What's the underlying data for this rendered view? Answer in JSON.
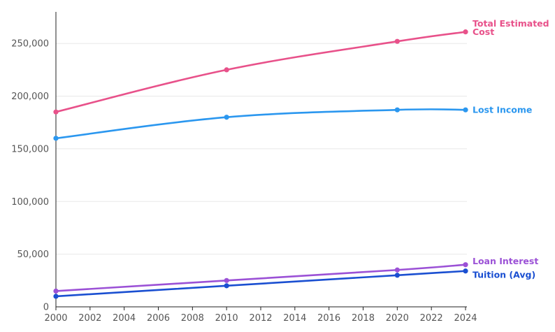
{
  "chart_data": {
    "type": "line",
    "x": [
      2000,
      2010,
      2020,
      2024
    ],
    "xlim": [
      2000,
      2024
    ],
    "ylim": [
      0,
      280000
    ],
    "xticks": [
      "2000",
      "2002",
      "2004",
      "2006",
      "2008",
      "2010",
      "2012",
      "2014",
      "2016",
      "2018",
      "2020",
      "2022",
      "2024"
    ],
    "yticks": [
      "0",
      "50,000",
      "100,000",
      "150,000",
      "200,000",
      "250,000"
    ],
    "grid": true,
    "series": [
      {
        "name_lines": [
          "Total Estimated",
          "Cost"
        ],
        "color": "#e8518a",
        "values": [
          185000,
          225000,
          252000,
          261000
        ]
      },
      {
        "name_lines": [
          "Lost Income"
        ],
        "color": "#2b97ef",
        "values": [
          160000,
          180000,
          187000,
          187000
        ]
      },
      {
        "name_lines": [
          "Loan Interest"
        ],
        "color": "#9b51d6",
        "values": [
          15000,
          25000,
          35000,
          40000
        ]
      },
      {
        "name_lines": [
          "Tuition (Avg)"
        ],
        "color": "#1a4fd1",
        "values": [
          10000,
          20000,
          30000,
          34000
        ]
      }
    ]
  }
}
